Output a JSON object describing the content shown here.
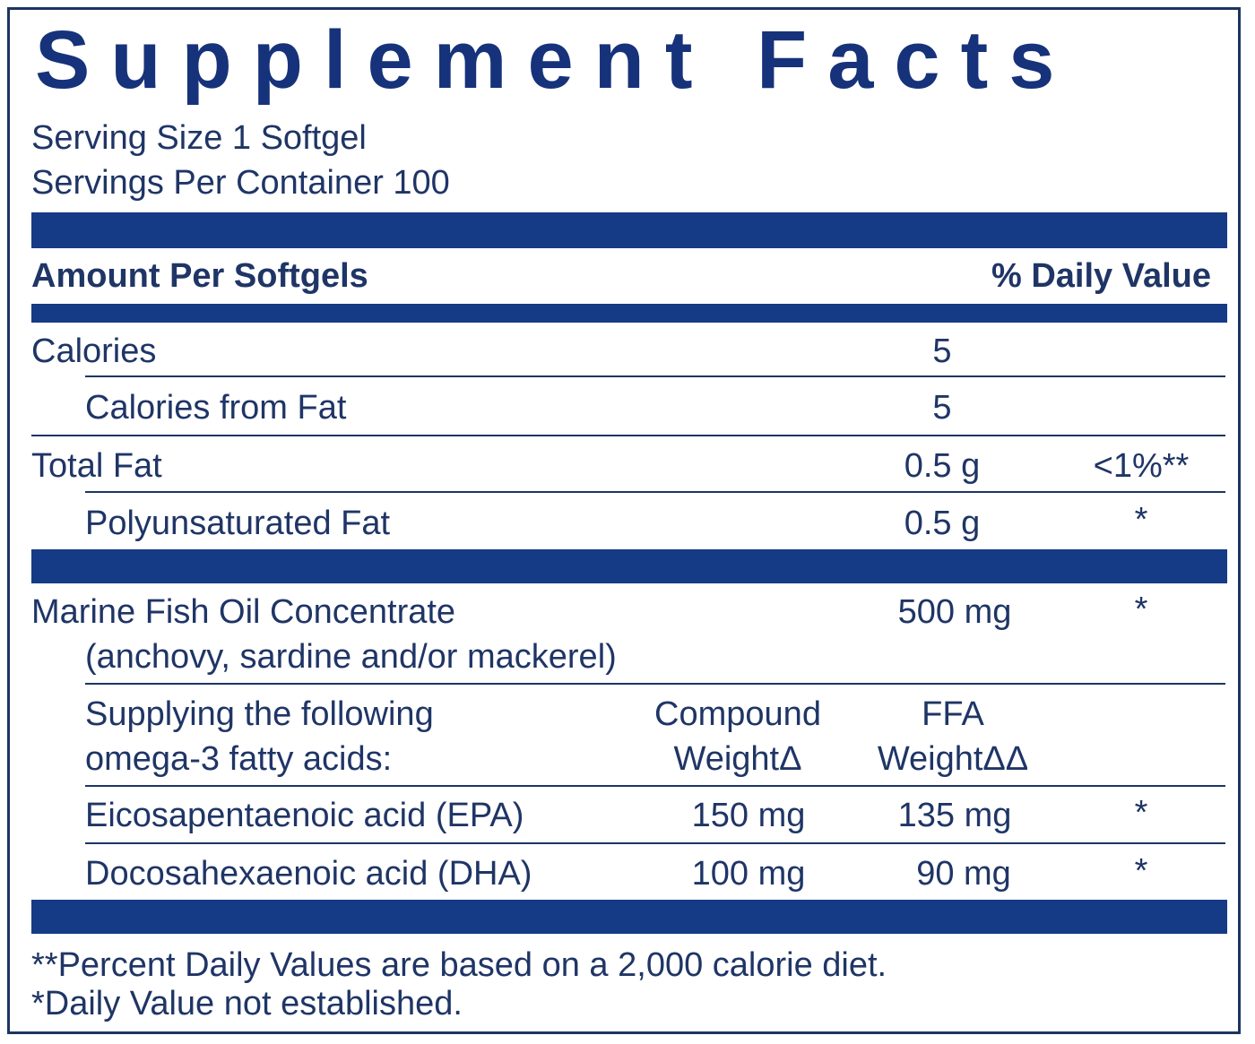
{
  "title": "Supplement Facts",
  "serving_size": "Serving Size 1 Softgel",
  "servings_per_container": "Servings Per Container 100",
  "header": {
    "amount_label": "Amount Per Softgels",
    "dv_label": "% Daily Value"
  },
  "rows": {
    "calories": {
      "name": "Calories",
      "amount": "5"
    },
    "calories_from_fat": {
      "name": "Calories from Fat",
      "amount": "5"
    },
    "total_fat": {
      "name": "Total Fat",
      "amount": "0.5 g",
      "dv": "<1%**"
    },
    "poly_fat": {
      "name": "Polyunsaturated Fat",
      "amount": "0.5 g",
      "dv": "*"
    },
    "fish_oil": {
      "name": "Marine Fish Oil Concentrate",
      "sub": "(anchovy, sardine and/or mackerel)",
      "amount": "500 mg",
      "dv": "*"
    }
  },
  "omega_header": {
    "line1": "Supplying the following",
    "line2": "omega-3 fatty acids:",
    "compound_line1": "Compound",
    "compound_line2": "WeightΔ",
    "ffa_line1": "FFA",
    "ffa_line2": "WeightΔΔ"
  },
  "omega_rows": {
    "epa": {
      "name": "Eicosapentaenoic acid (EPA)",
      "compound": "150 mg",
      "ffa": "135 mg",
      "dv": "*"
    },
    "dha": {
      "name": "Docosahexaenoic acid (DHA)",
      "compound": "100 mg",
      "ffa": "90 mg",
      "dv": "*"
    }
  },
  "footnotes": {
    "note1": "**Percent Daily Values are based on a 2,000 calorie diet.",
    "note2": "*Daily Value not established."
  },
  "colors": {
    "primary": "#153a86",
    "text": "#1f3566"
  }
}
